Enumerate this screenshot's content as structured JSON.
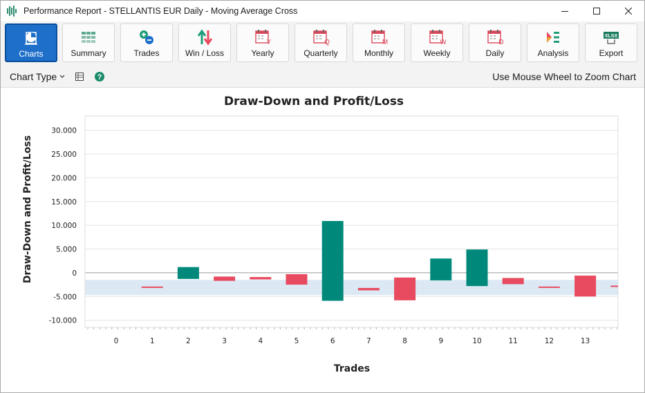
{
  "window": {
    "title": "Performance Report - STELLANTIS EUR Daily - Moving Average Cross",
    "minimize_icon": "minimize-icon",
    "maximize_icon": "maximize-icon",
    "close_icon": "close-icon"
  },
  "ribbon": {
    "buttons": [
      {
        "label": "Charts",
        "icon": "pie-chart-icon",
        "active": true
      },
      {
        "label": "Summary",
        "icon": "grid-icon"
      },
      {
        "label": "Trades",
        "icon": "plus-minus-icon"
      },
      {
        "label": "Win / Loss",
        "icon": "up-down-arrows-icon"
      },
      {
        "label": "Yearly",
        "icon": "calendar-y-icon",
        "letter": "Y"
      },
      {
        "label": "Quarterly",
        "icon": "calendar-q-icon",
        "letter": "Q"
      },
      {
        "label": "Monthly",
        "icon": "calendar-m-icon",
        "letter": "M"
      },
      {
        "label": "Weekly",
        "icon": "calendar-w-icon",
        "letter": "W"
      },
      {
        "label": "Daily",
        "icon": "calendar-d-icon",
        "letter": "D"
      },
      {
        "label": "Analysis",
        "icon": "analysis-icon"
      },
      {
        "label": "Export",
        "icon": "xlsx-icon",
        "badge": "XLSX"
      }
    ]
  },
  "subbar": {
    "chart_type_label": "Chart Type",
    "zoom_hint": "Use Mouse Wheel to Zoom Chart"
  },
  "colors": {
    "profit": "#00897b",
    "loss": "#e84a5f",
    "band": "#dce9f5",
    "accent": "#1e6fc9"
  },
  "chart_data": {
    "type": "bar",
    "title": "Draw-Down and Profit/Loss",
    "xlabel": "Trades",
    "ylabel": "Draw-Down and Profit/Loss",
    "ylim": [
      -11500,
      33000
    ],
    "yticks": [
      30000,
      25000,
      20000,
      15000,
      10000,
      5000,
      0,
      -5000,
      -10000
    ],
    "ytick_labels": [
      "30.000",
      "25.000",
      "20.000",
      "15.000",
      "10.000",
      "5.000",
      "0",
      "-5.000",
      "-10.000"
    ],
    "x_categories": [
      "0",
      "1",
      "2",
      "3",
      "4",
      "5",
      "6",
      "7",
      "8",
      "9",
      "10",
      "11",
      "12",
      "13"
    ],
    "band": [
      -4700,
      -1500
    ],
    "bars": [
      {
        "trade": 1,
        "low": -3100,
        "high": -2900,
        "kind": "loss"
      },
      {
        "trade": 2,
        "low": -1300,
        "high": 1200,
        "kind": "profit"
      },
      {
        "trade": 3,
        "low": -1700,
        "high": -800,
        "kind": "loss"
      },
      {
        "trade": 4,
        "low": -1400,
        "high": -900,
        "kind": "loss"
      },
      {
        "trade": 5,
        "low": -2500,
        "high": -300,
        "kind": "loss"
      },
      {
        "trade": 6,
        "low": -5900,
        "high": 10900,
        "kind": "profit"
      },
      {
        "trade": 7,
        "low": -3700,
        "high": -3200,
        "kind": "loss"
      },
      {
        "trade": 8,
        "low": -5800,
        "high": -1000,
        "kind": "loss"
      },
      {
        "trade": 9,
        "low": -1600,
        "high": 3000,
        "kind": "profit"
      },
      {
        "trade": 10,
        "low": -2800,
        "high": 4900,
        "kind": "profit"
      },
      {
        "trade": 11,
        "low": -2400,
        "high": -1100,
        "kind": "loss"
      },
      {
        "trade": 12,
        "low": -3100,
        "high": -2900,
        "kind": "loss"
      },
      {
        "trade": 13,
        "low": -5000,
        "high": -600,
        "kind": "loss"
      },
      {
        "trade": 14,
        "low": -2900,
        "high": -2700,
        "kind": "loss"
      }
    ]
  }
}
